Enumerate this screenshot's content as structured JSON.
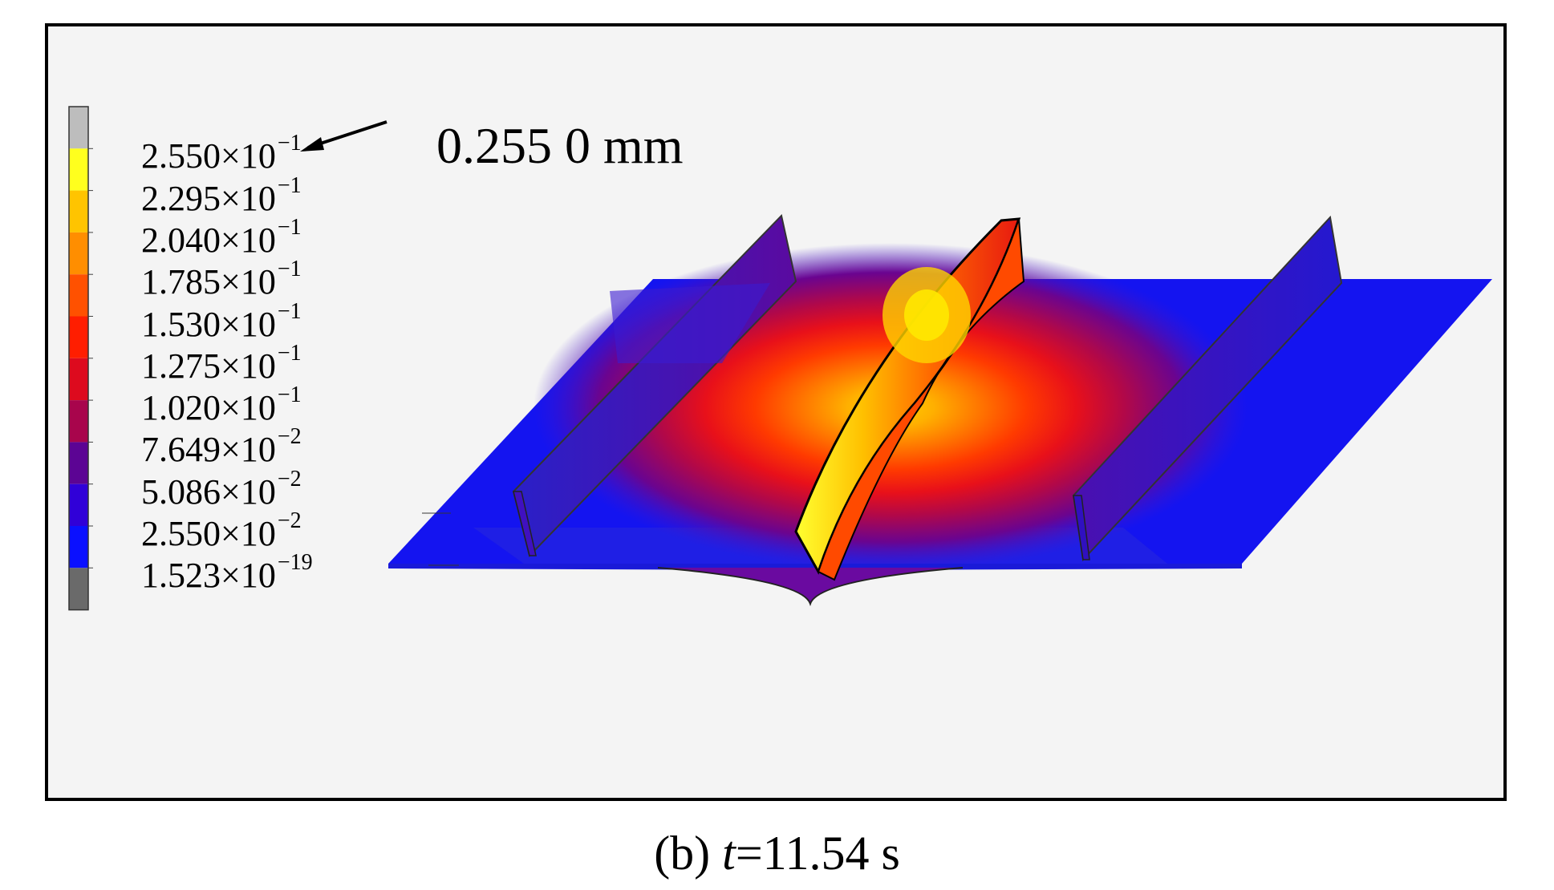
{
  "annotation": {
    "max_value": "0.255 0 mm"
  },
  "caption": {
    "prefix": "(b) ",
    "variable": "t",
    "suffix": "=11.54 s"
  },
  "legend": {
    "levels": [
      {
        "mantissa": "2.550",
        "exponent": "−1",
        "color": "#bdbdbd"
      },
      {
        "mantissa": "2.295",
        "exponent": "−1",
        "color": "#ffff1e"
      },
      {
        "mantissa": "2.040",
        "exponent": "−1",
        "color": "#ffc400"
      },
      {
        "mantissa": "1.785",
        "exponent": "−1",
        "color": "#ff8e00"
      },
      {
        "mantissa": "1.530",
        "exponent": "−1",
        "color": "#ff5100"
      },
      {
        "mantissa": "1.275",
        "exponent": "−1",
        "color": "#ff1e00"
      },
      {
        "mantissa": "1.020",
        "exponent": "−1",
        "color": "#dd0a1e"
      },
      {
        "mantissa": "7.649",
        "exponent": "−2",
        "color": "#a8054c"
      },
      {
        "mantissa": "5.086",
        "exponent": "−2",
        "color": "#5c0494"
      },
      {
        "mantissa": "2.550",
        "exponent": "−2",
        "color": "#3000d8"
      },
      {
        "mantissa": "1.523",
        "exponent": "−19",
        "color": "#0a10ff"
      }
    ],
    "below_range_color": "#6a6a6a"
  }
}
